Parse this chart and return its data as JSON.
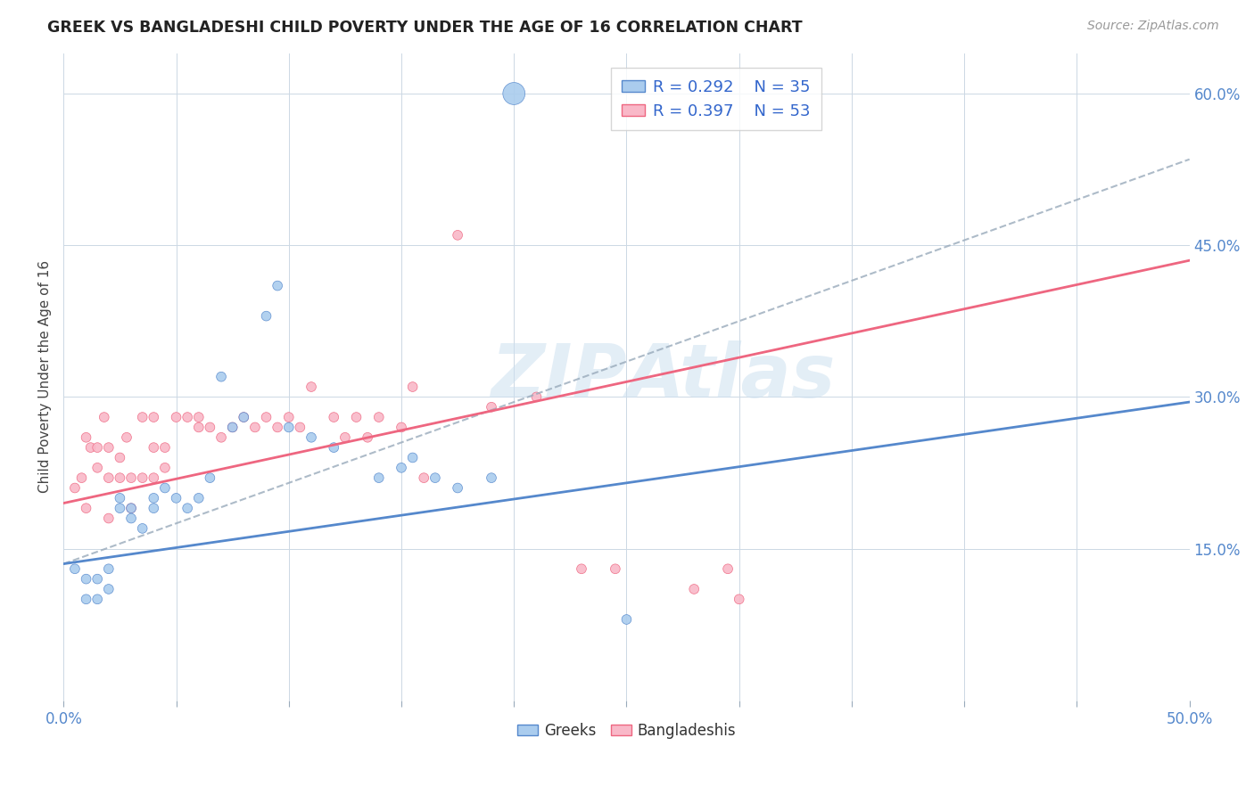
{
  "title": "GREEK VS BANGLADESHI CHILD POVERTY UNDER THE AGE OF 16 CORRELATION CHART",
  "source": "Source: ZipAtlas.com",
  "ylabel": "Child Poverty Under the Age of 16",
  "xlim": [
    0.0,
    0.5
  ],
  "ylim": [
    0.0,
    0.64
  ],
  "yticks_right": [
    0.15,
    0.3,
    0.45,
    0.6
  ],
  "ytick_labels_right": [
    "15.0%",
    "30.0%",
    "45.0%",
    "60.0%"
  ],
  "xtick_labels": [
    "0.0%",
    "",
    "",
    "",
    "",
    "",
    "",
    "",
    "",
    "",
    "50.0%"
  ],
  "watermark": "ZIPAtlas",
  "legend_greek_R": "R = 0.292",
  "legend_greek_N": "N = 35",
  "legend_bang_R": "R = 0.397",
  "legend_bang_N": "N = 53",
  "color_greek": "#aaccee",
  "color_bang": "#f9b8c8",
  "color_greek_line": "#5588cc",
  "color_bang_line": "#ee6680",
  "color_dashed": "#99aabb",
  "greek_scatter_x": [
    0.005,
    0.01,
    0.01,
    0.015,
    0.015,
    0.02,
    0.02,
    0.025,
    0.025,
    0.03,
    0.03,
    0.035,
    0.04,
    0.04,
    0.045,
    0.05,
    0.055,
    0.06,
    0.065,
    0.07,
    0.075,
    0.08,
    0.09,
    0.095,
    0.1,
    0.11,
    0.12,
    0.14,
    0.15,
    0.155,
    0.165,
    0.175,
    0.19,
    0.25,
    0.2
  ],
  "greek_scatter_y": [
    0.13,
    0.12,
    0.1,
    0.12,
    0.1,
    0.13,
    0.11,
    0.2,
    0.19,
    0.19,
    0.18,
    0.17,
    0.2,
    0.19,
    0.21,
    0.2,
    0.19,
    0.2,
    0.22,
    0.32,
    0.27,
    0.28,
    0.38,
    0.41,
    0.27,
    0.26,
    0.25,
    0.22,
    0.23,
    0.24,
    0.22,
    0.21,
    0.22,
    0.08,
    0.6
  ],
  "greek_sizes": [
    60,
    60,
    60,
    60,
    60,
    60,
    60,
    60,
    60,
    60,
    60,
    60,
    60,
    60,
    60,
    60,
    60,
    60,
    60,
    60,
    60,
    60,
    60,
    60,
    60,
    60,
    60,
    60,
    60,
    60,
    60,
    60,
    60,
    60,
    320
  ],
  "bang_scatter_x": [
    0.005,
    0.008,
    0.01,
    0.01,
    0.012,
    0.015,
    0.015,
    0.018,
    0.02,
    0.02,
    0.02,
    0.025,
    0.025,
    0.028,
    0.03,
    0.03,
    0.035,
    0.035,
    0.04,
    0.04,
    0.04,
    0.045,
    0.045,
    0.05,
    0.055,
    0.06,
    0.06,
    0.065,
    0.07,
    0.075,
    0.08,
    0.085,
    0.09,
    0.095,
    0.1,
    0.105,
    0.11,
    0.12,
    0.125,
    0.13,
    0.135,
    0.14,
    0.15,
    0.155,
    0.16,
    0.175,
    0.19,
    0.21,
    0.23,
    0.245,
    0.28,
    0.295,
    0.3
  ],
  "bang_scatter_y": [
    0.21,
    0.22,
    0.26,
    0.19,
    0.25,
    0.23,
    0.25,
    0.28,
    0.25,
    0.22,
    0.18,
    0.24,
    0.22,
    0.26,
    0.22,
    0.19,
    0.28,
    0.22,
    0.28,
    0.25,
    0.22,
    0.25,
    0.23,
    0.28,
    0.28,
    0.28,
    0.27,
    0.27,
    0.26,
    0.27,
    0.28,
    0.27,
    0.28,
    0.27,
    0.28,
    0.27,
    0.31,
    0.28,
    0.26,
    0.28,
    0.26,
    0.28,
    0.27,
    0.31,
    0.22,
    0.46,
    0.29,
    0.3,
    0.13,
    0.13,
    0.11,
    0.13,
    0.1
  ],
  "bang_sizes": [
    60,
    60,
    60,
    60,
    60,
    60,
    60,
    60,
    60,
    60,
    60,
    60,
    60,
    60,
    60,
    60,
    60,
    60,
    60,
    60,
    60,
    60,
    60,
    60,
    60,
    60,
    60,
    60,
    60,
    60,
    60,
    60,
    60,
    60,
    60,
    60,
    60,
    60,
    60,
    60,
    60,
    60,
    60,
    60,
    60,
    60,
    60,
    60,
    60,
    60,
    60,
    60,
    60
  ],
  "greek_line_x": [
    0.0,
    0.5
  ],
  "greek_line_y": [
    0.135,
    0.295
  ],
  "bang_line_x": [
    0.0,
    0.5
  ],
  "bang_line_y": [
    0.195,
    0.435
  ],
  "dashed_line_x": [
    0.0,
    0.5
  ],
  "dashed_line_y": [
    0.135,
    0.535
  ]
}
